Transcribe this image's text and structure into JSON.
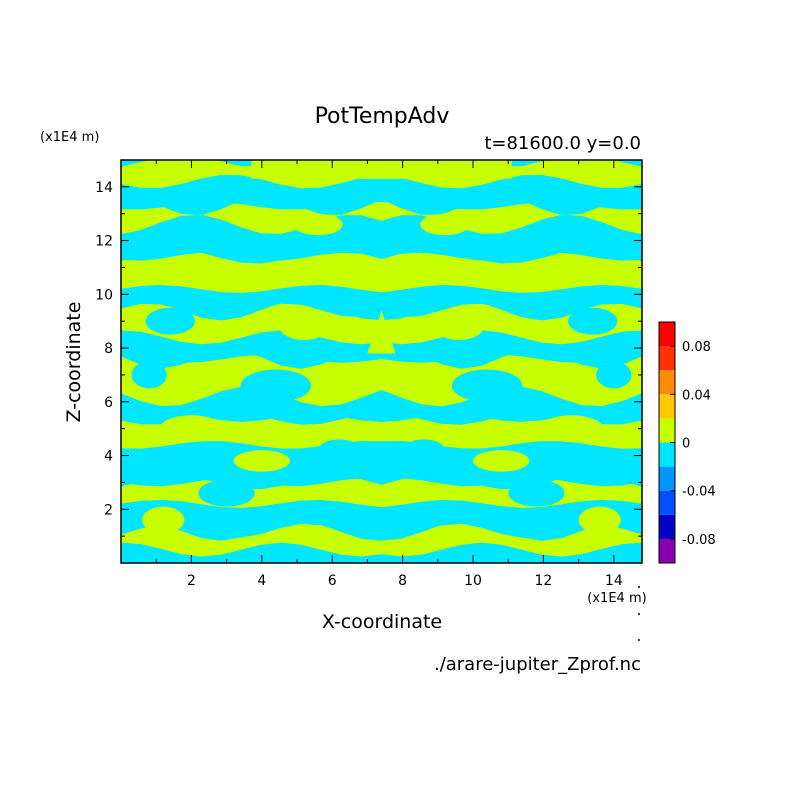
{
  "chart_data": {
    "type": "heatmap",
    "title": "PotTempAdv",
    "subtitle": "t=81600.0 y=0.0",
    "xlabel": "X-coordinate",
    "ylabel": "Z-coordinate",
    "x_unit": "(x1E4 m)",
    "y_unit": "(x1E4 m)",
    "source_file": "./arare-jupiter_Zprof.nc",
    "xlim": [
      0,
      14.8
    ],
    "ylim": [
      0,
      15
    ],
    "x_ticks": [
      "2",
      "4",
      "6",
      "8",
      "10",
      "12",
      "14"
    ],
    "x_tick_values": [
      2,
      4,
      6,
      8,
      10,
      12,
      14
    ],
    "y_ticks": [
      "2",
      "4",
      "6",
      "8",
      "10",
      "12",
      "14"
    ],
    "y_tick_values": [
      2,
      4,
      6,
      8,
      10,
      12,
      14
    ],
    "colorbar": {
      "levels": [
        -0.1,
        -0.08,
        -0.06,
        -0.04,
        -0.02,
        0,
        0.02,
        0.04,
        0.06,
        0.08,
        0.1
      ],
      "colors": [
        "#8a00b0",
        "#0000c8",
        "#0050ff",
        "#0096ff",
        "#00e6ff",
        "#c8ff00",
        "#ffc800",
        "#ff8c00",
        "#ff3200",
        "#ff0000",
        "#ffaaaa"
      ],
      "tick_labels": [
        "0.08",
        "0.04",
        "0",
        "-0.04",
        "-0.08"
      ],
      "tick_values": [
        0.08,
        0.04,
        0,
        -0.04,
        -0.08
      ]
    },
    "field_colors": {
      "positive": "#c8ff00",
      "negative": "#00e6ff"
    },
    "field_note_symmetry": "mirror-symmetric about x=7.4",
    "bands": [
      {
        "z0": 0.0,
        "z1": 0.5,
        "sign": "negative"
      },
      {
        "z0": 0.5,
        "z1": 1.2,
        "sign": "positive"
      },
      {
        "z0": 1.2,
        "z1": 2.2,
        "sign": "negative"
      },
      {
        "z0": 2.2,
        "z1": 3.0,
        "sign": "positive"
      },
      {
        "z0": 3.0,
        "z1": 3.6,
        "sign": "negative"
      },
      {
        "z0": 3.6,
        "z1": 4.4,
        "sign": "negative"
      },
      {
        "z0": 4.4,
        "z1": 5.4,
        "sign": "positive"
      },
      {
        "z0": 5.4,
        "z1": 6.2,
        "sign": "negative"
      },
      {
        "z0": 6.2,
        "z1": 7.6,
        "sign": "positive"
      },
      {
        "z0": 7.6,
        "z1": 8.4,
        "sign": "negative"
      },
      {
        "z0": 8.4,
        "z1": 9.4,
        "sign": "positive"
      },
      {
        "z0": 9.4,
        "z1": 10.2,
        "sign": "negative"
      },
      {
        "z0": 10.2,
        "z1": 11.4,
        "sign": "positive"
      },
      {
        "z0": 11.4,
        "z1": 12.6,
        "sign": "negative"
      },
      {
        "z0": 12.6,
        "z1": 13.3,
        "sign": "positive"
      },
      {
        "z0": 13.3,
        "z1": 14.2,
        "sign": "negative"
      },
      {
        "z0": 14.2,
        "z1": 15.0,
        "sign": "positive"
      }
    ]
  }
}
